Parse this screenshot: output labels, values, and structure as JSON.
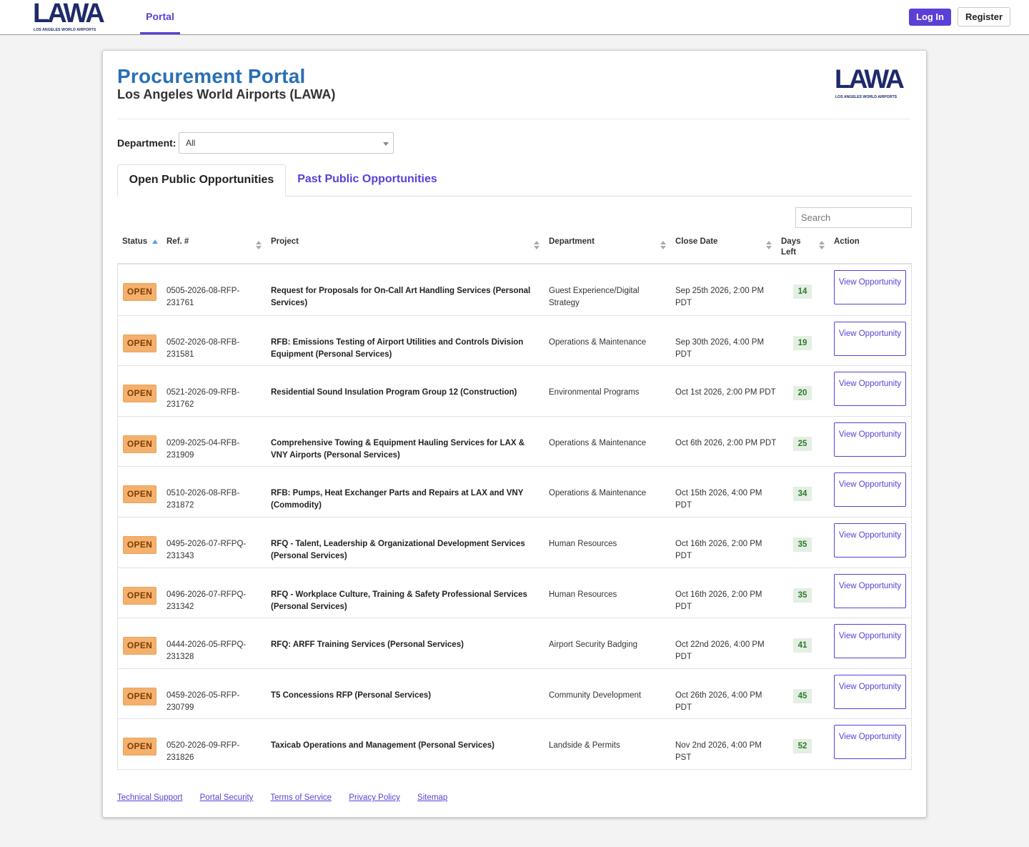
{
  "topbar": {
    "logo_text": "LAWA",
    "logo_tagline": "LOS ANGELES WORLD AIRPORTS",
    "nav_portal": "Portal",
    "login_label": "Log In",
    "register_label": "Register"
  },
  "header": {
    "title": "Procurement Portal",
    "subtitle": "Los Angeles World Airports (LAWA)",
    "logo_text": "LAWA",
    "logo_tagline": "LOS ANGELES WORLD AIRPORTS"
  },
  "filter": {
    "label": "Department:",
    "selected": "All"
  },
  "tabs": [
    {
      "label": "Open Public Opportunities",
      "active": true
    },
    {
      "label": "Past Public Opportunities",
      "active": false
    }
  ],
  "search": {
    "placeholder": "Search"
  },
  "table": {
    "headers": {
      "status": "Status",
      "ref": "Ref. #",
      "project": "Project",
      "department": "Department",
      "close_date": "Close Date",
      "days_left": "Days Left",
      "action": "Action"
    },
    "rows": [
      {
        "status": "OPEN",
        "ref": "0505-2026-08-RFP-231761",
        "project": "Request for Proposals for On-Call Art Handling Services (Personal Services)",
        "department": "Guest Experience/Digital Strategy",
        "close_date": "Sep 25th 2026, 2:00 PM PDT",
        "days_left": "14",
        "action": "View Opportunity"
      },
      {
        "status": "OPEN",
        "ref": "0502-2026-08-RFB-231581",
        "project": "RFB: Emissions Testing of Airport Utilities and Controls Division Equipment (Personal Services)",
        "department": "Operations & Maintenance",
        "close_date": "Sep 30th 2026, 4:00 PM PDT",
        "days_left": "19",
        "action": "View Opportunity"
      },
      {
        "status": "OPEN",
        "ref": "0521-2026-09-RFB-231762",
        "project": "Residential Sound Insulation Program Group 12 (Construction)",
        "department": "Environmental Programs",
        "close_date": "Oct 1st 2026, 2:00 PM PDT",
        "days_left": "20",
        "action": "View Opportunity"
      },
      {
        "status": "OPEN",
        "ref": "0209-2025-04-RFB-231909",
        "project": "Comprehensive Towing & Equipment Hauling Services for LAX & VNY Airports (Personal Services)",
        "department": "Operations & Maintenance",
        "close_date": "Oct 6th 2026, 2:00 PM PDT",
        "days_left": "25",
        "action": "View Opportunity"
      },
      {
        "status": "OPEN",
        "ref": "0510-2026-08-RFB-231872",
        "project": "RFB: Pumps, Heat Exchanger Parts and Repairs at LAX and VNY (Commodity)",
        "department": "Operations & Maintenance",
        "close_date": "Oct 15th 2026, 4:00 PM PDT",
        "days_left": "34",
        "action": "View Opportunity"
      },
      {
        "status": "OPEN",
        "ref": "0495-2026-07-RFPQ-231343",
        "project": "RFQ - Talent, Leadership & Organizational Development Services (Personal Services)",
        "department": "Human Resources",
        "close_date": "Oct 16th 2026, 2:00 PM PDT",
        "days_left": "35",
        "action": "View Opportunity"
      },
      {
        "status": "OPEN",
        "ref": "0496-2026-07-RFPQ-231342",
        "project": "RFQ - Workplace Culture, Training & Safety Professional Services (Personal Services)",
        "department": "Human Resources",
        "close_date": "Oct 16th 2026, 2:00 PM PDT",
        "days_left": "35",
        "action": "View Opportunity"
      },
      {
        "status": "OPEN",
        "ref": "0444-2026-05-RFPQ-231328",
        "project": "RFQ: ARFF Training Services (Personal Services)",
        "department": "Airport Security Badging",
        "close_date": "Oct 22nd 2026, 4:00 PM PDT",
        "days_left": "41",
        "action": "View Opportunity"
      },
      {
        "status": "OPEN",
        "ref": "0459-2026-05-RFP-230799",
        "project": "T5 Concessions RFP (Personal Services)",
        "department": "Community Development",
        "close_date": "Oct 26th 2026, 4:00 PM PDT",
        "days_left": "45",
        "action": "View Opportunity"
      },
      {
        "status": "OPEN",
        "ref": "0520-2026-09-RFP-231826",
        "project": "Taxicab Operations and Management (Personal Services)",
        "department": "Landside & Permits",
        "close_date": "Nov 2nd 2026, 4:00 PM PST",
        "days_left": "52",
        "action": "View Opportunity"
      }
    ]
  },
  "footer": {
    "links": [
      "Technical Support",
      "Portal Security",
      "Terms of Service",
      "Privacy Policy",
      "Sitemap"
    ]
  },
  "colors": {
    "accent": "#5b3fd6",
    "title_blue": "#2a6fb5",
    "open_badge": "#f5b06d",
    "days_badge": "#e4efe4",
    "logo_navy": "#1f2a6b"
  }
}
